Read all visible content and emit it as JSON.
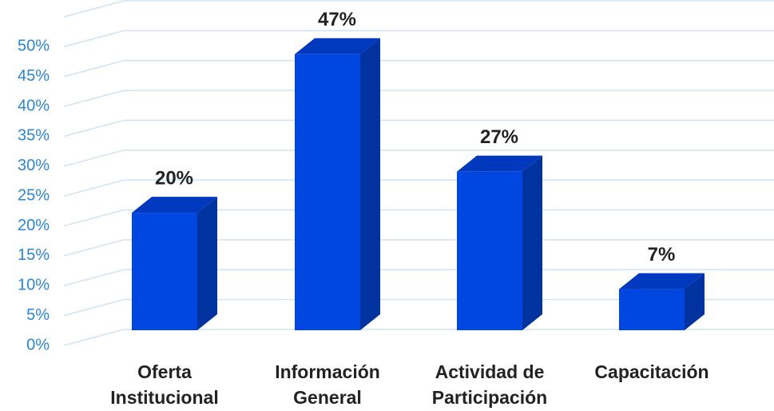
{
  "chart_data": {
    "type": "bar3d",
    "categories": [
      "Oferta Institucional",
      "Información General",
      "Actividad de Participación",
      "Capacitación"
    ],
    "values": [
      20,
      47,
      27,
      7
    ],
    "value_labels": [
      "20%",
      "47%",
      "27%",
      "7%"
    ],
    "color": "#0046e0",
    "ylim": [
      0,
      55
    ],
    "yticks": [
      {
        "value": 0,
        "label": "0%"
      },
      {
        "value": 5,
        "label": "5%"
      },
      {
        "value": 10,
        "label": "10%"
      },
      {
        "value": 15,
        "label": "15%"
      },
      {
        "value": 20,
        "label": "20%"
      },
      {
        "value": 25,
        "label": "25%"
      },
      {
        "value": 30,
        "label": "30%"
      },
      {
        "value": 35,
        "label": "35%"
      },
      {
        "value": 40,
        "label": "40%"
      },
      {
        "value": 45,
        "label": "45%"
      },
      {
        "value": 50,
        "label": "50%"
      }
    ],
    "grid": true
  }
}
